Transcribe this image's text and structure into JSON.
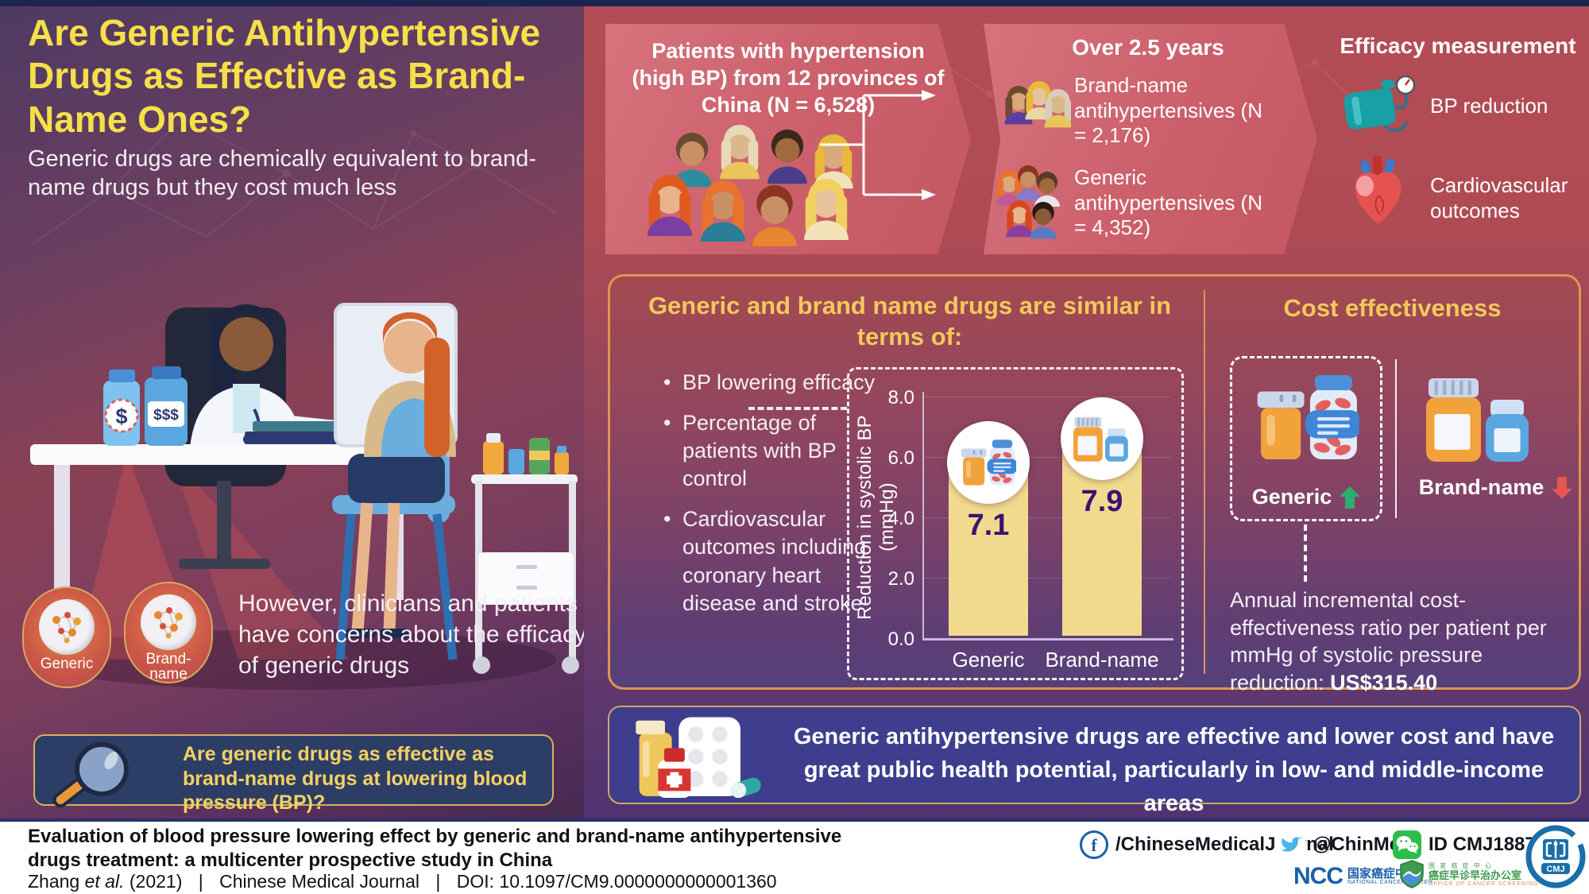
{
  "left": {
    "title": "Are Generic Antihypertensive Drugs as Effective as Brand-Name Ones?",
    "subtitle": "Generic drugs are chemically equivalent to brand-name drugs but they cost much less",
    "money_generic": "$",
    "money_brand": "$$$",
    "badge_generic": "Generic",
    "badge_brand": "Brand-name",
    "concern": "However, clinicians and patients have concerns about the efficacy of generic drugs",
    "question": "Are generic drugs as effective as brand-name drugs at lowering blood pressure (BP)?"
  },
  "study": {
    "patients": "Patients with hypertension (high BP) from 12 provinces of China (N = 6,528)",
    "duration": "Over 2.5 years",
    "brand_group": "Brand-name antihypertensives (N = 2,176)",
    "generic_group": "Generic antihypertensives (N = 4,352)",
    "efficacy_title": "Efficacy measurement",
    "measure_bp": "BP reduction",
    "measure_cv": "Cardiovascular outcomes"
  },
  "similarity": {
    "heading": "Generic and brand name drugs are similar in terms of:",
    "bullets": [
      "BP lowering efficacy",
      "Percentage of patients with BP control",
      "Cardiovascular outcomes including coronary heart disease and stroke"
    ]
  },
  "chart": {
    "ylabel": "Reduction in systolic BP (mmHg)",
    "ticks": [
      "8.0",
      "6.0",
      "4.0",
      "2.0",
      "0.0"
    ],
    "categories": [
      "Generic",
      "Brand-name"
    ],
    "value_labels": [
      "7.1",
      "7.9"
    ]
  },
  "chart_data": {
    "type": "bar",
    "categories": [
      "Generic",
      "Brand-name"
    ],
    "values": [
      7.1,
      7.9
    ],
    "title": "",
    "xlabel": "",
    "ylabel": "Reduction in systolic BP (mmHg)",
    "ylim": [
      0,
      8
    ],
    "grid": true,
    "bar_color": "#f1da8d",
    "value_label_color": "#3a1374"
  },
  "cost": {
    "heading": "Cost effectiveness",
    "generic_label": "Generic",
    "brand_label": "Brand-name",
    "note_text": "Annual incremental cost-effectiveness ratio per patient per mmHg of systolic pressure reduction: ",
    "note_value": "US$315.40"
  },
  "conclusion": "Generic antihypertensive drugs are effective and lower cost and have great public health potential, particularly in low- and middle-income areas",
  "footer": {
    "title": "Evaluation of blood pressure lowering effect by generic and brand-name antihypertensive drugs treatment: a multicenter prospective study in China",
    "author": "Zhang",
    "etal": "et al.",
    "year": "(2021)",
    "pipe": "|",
    "journal": "Chinese Medical Journal",
    "doi": "DOI: 10.1097/CM9.0000000000001360",
    "facebook": "/ChineseMedicalJournal",
    "twitter": "@ChinMedJ",
    "wechat": "ID CMJ1887",
    "ncc_abbr": "NCC",
    "ncc_cn": "国家癌症中心",
    "ncc_en": "NATIONAL CANCER CENTER",
    "screening_cn_small": "国 家 癌 症 中 心",
    "screening_cn": "癌症早诊早治办公室",
    "screening_en": "OFFICE OF CANCER SCREENING",
    "cmj": "CMJ"
  },
  "colors": {
    "accent_yellow": "#f6df49",
    "heading_gold": "#f3c85c",
    "band_red": "#b24d55",
    "panel_border": "#e0954f",
    "banner_bg": "#3e3d8e",
    "green_up": "#2eae6e",
    "red_down": "#e85555"
  }
}
